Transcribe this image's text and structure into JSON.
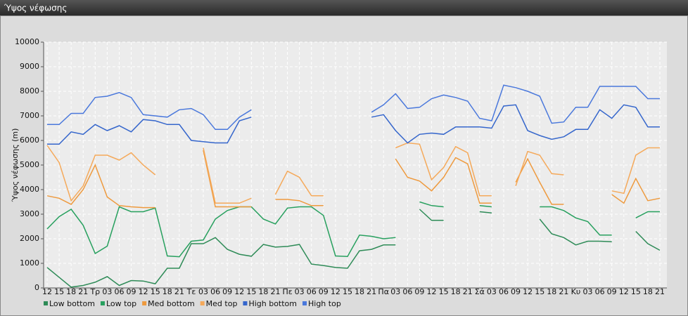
{
  "chart_data": {
    "type": "line",
    "title": "Ύψος νέφωσης",
    "y_label": "Ύψος νέφωσης (m)",
    "categories": [
      "12",
      "15",
      "18",
      "21",
      "Τρ",
      "03",
      "06",
      "09",
      "12",
      "15",
      "18",
      "21",
      "Τε",
      "03",
      "06",
      "09",
      "12",
      "15",
      "18",
      "21",
      "Πε",
      "03",
      "06",
      "09",
      "12",
      "15",
      "18",
      "21",
      "Πα",
      "03",
      "06",
      "09",
      "12",
      "15",
      "18",
      "21",
      "Σά",
      "03",
      "06",
      "09",
      "12",
      "15",
      "18",
      "21",
      "Κυ",
      "03",
      "06",
      "09",
      "12",
      "15",
      "18",
      "21"
    ],
    "ylim": [
      0,
      10000
    ],
    "yticks": [
      0,
      1000,
      2000,
      3000,
      4000,
      5000,
      6000,
      7000,
      8000,
      9000,
      10000
    ],
    "grid": true,
    "legend": "bottom-left",
    "series": [
      {
        "name": "Low bottom",
        "color": "#2e8b57",
        "values": [
          830,
          430,
          30,
          100,
          230,
          460,
          100,
          300,
          280,
          170,
          800,
          800,
          1800,
          1800,
          2050,
          1570,
          1370,
          1290,
          1770,
          1660,
          1690,
          1770,
          970,
          910,
          830,
          800,
          1510,
          1570,
          1750,
          1750,
          null,
          3200,
          2750,
          2750,
          null,
          null,
          3100,
          3050,
          null,
          null,
          null,
          2800,
          2200,
          2050,
          1750,
          1900,
          1900,
          1880,
          null,
          2300,
          1800,
          1530
        ]
      },
      {
        "name": "Low top",
        "color": "#27a05e",
        "values": [
          2400,
          2900,
          3200,
          2550,
          1400,
          1700,
          3300,
          3100,
          3100,
          3250,
          1300,
          1270,
          1900,
          1950,
          2800,
          3150,
          3300,
          3300,
          2800,
          2600,
          3250,
          3300,
          3300,
          2950,
          1300,
          1280,
          2150,
          2100,
          2000,
          2050,
          null,
          3500,
          3350,
          3300,
          null,
          null,
          3350,
          3300,
          null,
          null,
          null,
          3300,
          3300,
          3150,
          2850,
          2700,
          2150,
          2150,
          null,
          2850,
          3100,
          3100
        ]
      },
      {
        "name": "Med bottom",
        "color": "#ee9a3e",
        "values": [
          3750,
          3650,
          3400,
          4000,
          5000,
          3700,
          3350,
          3300,
          3270,
          3270,
          null,
          null,
          null,
          5600,
          3300,
          3300,
          3300,
          3300,
          null,
          3600,
          3600,
          3550,
          3350,
          3350,
          null,
          null,
          null,
          null,
          null,
          5250,
          4500,
          4350,
          3950,
          4500,
          5300,
          5050,
          3450,
          3450,
          null,
          4300,
          5250,
          4300,
          3400,
          3400,
          null,
          null,
          null,
          3800,
          3450,
          4450,
          3550,
          3650
        ]
      },
      {
        "name": "Med top",
        "color": "#f5a95a",
        "values": [
          5800,
          5100,
          3550,
          4150,
          5400,
          5400,
          5200,
          5500,
          5000,
          4600,
          null,
          null,
          null,
          5700,
          3450,
          3450,
          3450,
          3650,
          null,
          3800,
          4750,
          4500,
          3750,
          3750,
          null,
          null,
          null,
          null,
          null,
          5700,
          5900,
          5850,
          4400,
          4900,
          5750,
          5500,
          3750,
          3750,
          null,
          4150,
          5550,
          5400,
          4650,
          4600,
          null,
          null,
          null,
          3950,
          3850,
          5400,
          5700,
          5700
        ]
      },
      {
        "name": "High bottom",
        "color": "#3566cc",
        "values": [
          5850,
          5850,
          6350,
          6250,
          6650,
          6400,
          6600,
          6350,
          6850,
          6800,
          6650,
          6650,
          6000,
          5950,
          5900,
          5900,
          6800,
          6950,
          null,
          null,
          null,
          null,
          null,
          null,
          null,
          null,
          null,
          6950,
          7050,
          6400,
          5900,
          6250,
          6300,
          6250,
          6550,
          6550,
          6550,
          6500,
          7400,
          7450,
          6400,
          6200,
          6050,
          6150,
          6450,
          6450,
          7250,
          6900,
          7450,
          7350,
          6550,
          6550
        ]
      },
      {
        "name": "High top",
        "color": "#4a78dc",
        "values": [
          6650,
          6650,
          7100,
          7100,
          7750,
          7800,
          7950,
          7750,
          7050,
          7000,
          6950,
          7250,
          7300,
          7050,
          6450,
          6450,
          6950,
          7250,
          null,
          null,
          null,
          null,
          null,
          null,
          null,
          null,
          null,
          7150,
          7450,
          7900,
          7300,
          7350,
          7700,
          7850,
          7750,
          7600,
          6900,
          6800,
          8250,
          8150,
          8000,
          7800,
          6700,
          6750,
          7350,
          7350,
          8200,
          8200,
          8200,
          8200,
          7700,
          7700
        ]
      }
    ]
  }
}
